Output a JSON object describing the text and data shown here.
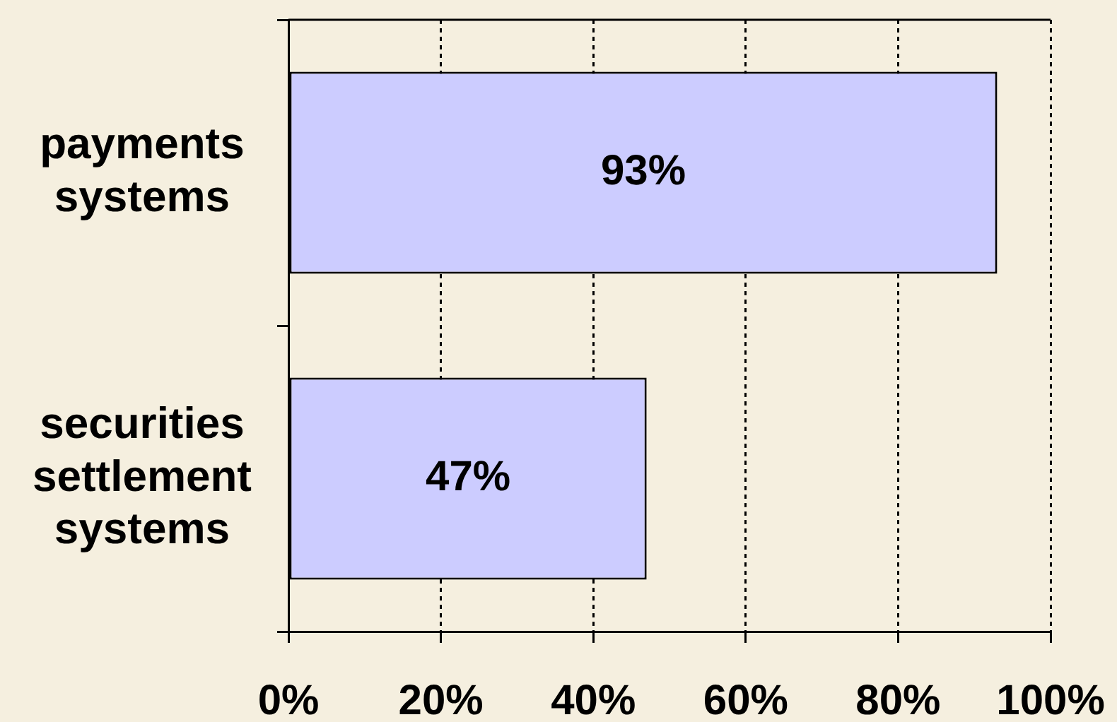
{
  "chart_data": {
    "type": "bar",
    "orientation": "horizontal",
    "categories": [
      "payments systems",
      "securities settlement systems"
    ],
    "values": [
      93,
      47
    ],
    "color": "#ccccff",
    "value_labels": [
      "93%",
      "47%"
    ],
    "xlim": [
      0,
      100
    ],
    "xticks": [
      {
        "value": 0,
        "label": "0%"
      },
      {
        "value": 20,
        "label": "20%"
      },
      {
        "value": 40,
        "label": "40%"
      },
      {
        "value": 60,
        "label": "60%"
      },
      {
        "value": 80,
        "label": "80%"
      },
      {
        "value": 100,
        "label": "100%"
      }
    ],
    "grid": "x"
  }
}
